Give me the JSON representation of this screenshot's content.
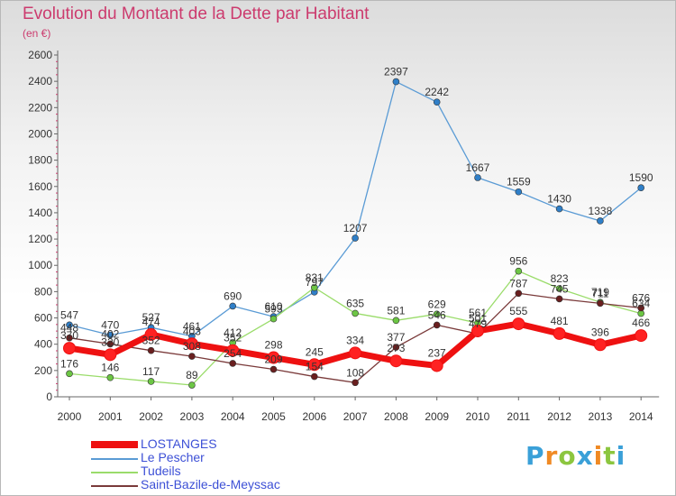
{
  "title": "Evolution du Montant de la Dette par Habitant",
  "subtitle": "(en €)",
  "logo": {
    "text": "Proxiti",
    "letters": [
      {
        "ch": "P",
        "color": "#3aa0d8"
      },
      {
        "ch": "r",
        "color": "#f08a24"
      },
      {
        "ch": "o",
        "color": "#8cc63f"
      },
      {
        "ch": "x",
        "color": "#3aa0d8"
      },
      {
        "ch": "i",
        "color": "#f08a24"
      },
      {
        "ch": "t",
        "color": "#8cc63f"
      },
      {
        "ch": "i",
        "color": "#3aa0d8"
      }
    ]
  },
  "chart_data": {
    "type": "line",
    "title": "Evolution du Montant de la Dette par Habitant",
    "subtitle": "(en €)",
    "x": [
      "2000",
      "2001",
      "2002",
      "2003",
      "2004",
      "2005",
      "2006",
      "2007",
      "2008",
      "2009",
      "2010",
      "2011",
      "2012",
      "2013",
      "2014"
    ],
    "yticks": [
      0,
      200,
      400,
      600,
      800,
      1000,
      1200,
      1400,
      1600,
      1800,
      2000,
      2200,
      2400,
      2600
    ],
    "ylim": [
      0,
      2600
    ],
    "grid": false,
    "legend_position": "bottom-left",
    "series": [
      {
        "name": "LOSTANGES",
        "color": "#ee1111",
        "point_color": "#ff2222",
        "emphasis": true,
        "values": [
          370,
          320,
          474,
          403,
          352,
          298,
          245,
          334,
          273,
          237,
          501,
          555,
          481,
          396,
          466
        ],
        "labels": [
          "370",
          "320",
          "474",
          "403",
          "352",
          "298",
          "245",
          "334",
          "273",
          "237",
          "501",
          "555",
          "481",
          "396",
          "466"
        ]
      },
      {
        "name": "Le Pescher",
        "color": "#5a9bd5",
        "point_color": "#2f7fc8",
        "values": [
          547,
          470,
          527,
          461,
          690,
          610,
          797,
          1207,
          2397,
          2242,
          1667,
          1559,
          1430,
          1338,
          1590
        ],
        "labels": [
          "547",
          "470",
          "527",
          "461",
          "690",
          "610",
          "797",
          "1207",
          "2397",
          "2242",
          "1667",
          "1559",
          "1430",
          "1338",
          "1590"
        ]
      },
      {
        "name": "Tudeils",
        "color": "#9adc6a",
        "point_color": "#6cc644",
        "values": [
          176,
          146,
          117,
          89,
          412,
          593,
          831,
          635,
          581,
          629,
          561,
          956,
          823,
          719,
          634
        ],
        "labels": [
          "176",
          "146",
          "117",
          "89",
          "412",
          "593",
          "831",
          "635",
          "581",
          "629",
          "561",
          "956",
          "823",
          "719",
          "634"
        ]
      },
      {
        "name": "Saint-Bazile-de-Meyssac",
        "color": "#7a3a3a",
        "point_color": "#6a1f1f",
        "values": [
          448,
          402,
          352,
          308,
          254,
          209,
          154,
          108,
          377,
          546,
          479,
          787,
          745,
          711,
          676
        ],
        "labels": [
          "448",
          "402",
          "352",
          "308",
          "254",
          "209",
          "154",
          "108",
          "377",
          "546",
          "479",
          "787",
          "745",
          "711",
          "676"
        ]
      }
    ]
  }
}
